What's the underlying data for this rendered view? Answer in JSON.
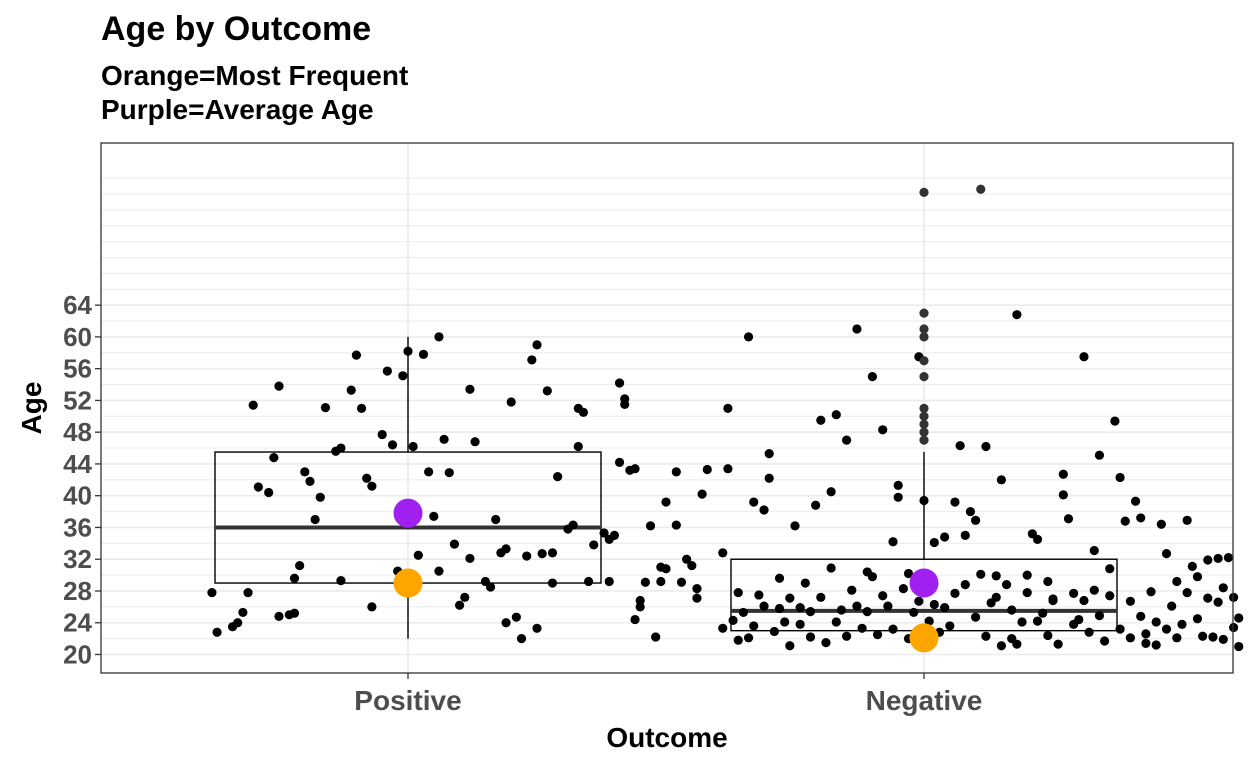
{
  "chart_data": {
    "type": "boxplot",
    "title": "Age by Outcome",
    "subtitle_lines": [
      "Orange=Most Frequent",
      "Purple=Average Age"
    ],
    "xlabel": "Outcome",
    "ylabel": "Age",
    "ylim": [
      18.5,
      80
    ],
    "yticks": [
      20,
      24,
      28,
      32,
      36,
      40,
      44,
      48,
      52,
      56,
      60,
      64
    ],
    "grid": true,
    "categories": [
      "Positive",
      "Negative"
    ],
    "colors": {
      "mode": "#ffa500",
      "mean": "#a020f0",
      "points": "#000000",
      "box": "#000000"
    },
    "boxes": [
      {
        "category": "Positive",
        "whisker_low": 22,
        "q1": 29,
        "median": 36,
        "q3": 45.5,
        "whisker_high": 60,
        "mean": 37.8,
        "mode": 29
      },
      {
        "category": "Negative",
        "whisker_low": 21,
        "q1": 23,
        "median": 25.5,
        "q3": 32,
        "whisker_high": 45.5,
        "mean": 29,
        "mode": 22.1
      }
    ],
    "points": [
      [
        [
          0.62,
          27.8
        ],
        [
          0.63,
          22.8
        ],
        [
          0.66,
          23.5
        ],
        [
          0.67,
          24
        ],
        [
          0.68,
          25.3
        ],
        [
          0.69,
          27.8
        ],
        [
          0.7,
          51.4
        ],
        [
          0.71,
          41.1
        ],
        [
          0.73,
          40.4
        ],
        [
          0.74,
          44.8
        ],
        [
          0.75,
          53.8
        ],
        [
          0.75,
          24.8
        ],
        [
          0.77,
          25
        ],
        [
          0.78,
          25.2
        ],
        [
          0.78,
          29.6
        ],
        [
          0.79,
          31.2
        ],
        [
          0.8,
          43
        ],
        [
          0.81,
          41.8
        ],
        [
          0.82,
          37
        ],
        [
          0.83,
          39.8
        ],
        [
          0.84,
          51.1
        ],
        [
          0.86,
          45.6
        ],
        [
          0.87,
          46
        ],
        [
          0.87,
          29.3
        ],
        [
          0.89,
          53.3
        ],
        [
          0.9,
          57.7
        ],
        [
          0.91,
          51
        ],
        [
          0.92,
          42.2
        ],
        [
          0.93,
          41.2
        ],
        [
          0.93,
          26
        ],
        [
          0.95,
          47.7
        ],
        [
          0.96,
          55.7
        ],
        [
          0.97,
          46.4
        ],
        [
          0.98,
          30.5
        ],
        [
          0.99,
          55.1
        ],
        [
          1,
          58.2
        ],
        [
          1.01,
          46.2
        ],
        [
          1.02,
          32.5
        ],
        [
          1.03,
          57.8
        ],
        [
          1.04,
          43
        ],
        [
          1.05,
          37.4
        ],
        [
          1.06,
          30.5
        ],
        [
          1.06,
          60
        ],
        [
          1.07,
          47.1
        ],
        [
          1.08,
          42.9
        ],
        [
          1.09,
          33.9
        ],
        [
          1.1,
          26.2
        ],
        [
          1.11,
          27.2
        ],
        [
          1.12,
          53.4
        ],
        [
          1.12,
          32.1
        ],
        [
          1.13,
          46.8
        ],
        [
          1.15,
          29.2
        ],
        [
          1.16,
          28.5
        ],
        [
          1.17,
          37
        ],
        [
          1.18,
          32.8
        ],
        [
          1.19,
          24
        ],
        [
          1.19,
          33.3
        ],
        [
          1.2,
          51.8
        ],
        [
          1.21,
          24.7
        ],
        [
          1.22,
          22
        ],
        [
          1.23,
          32.4
        ],
        [
          1.24,
          57.1
        ],
        [
          1.25,
          59
        ],
        [
          1.25,
          23.3
        ],
        [
          1.26,
          32.7
        ],
        [
          1.27,
          53.2
        ],
        [
          1.28,
          29
        ],
        [
          1.28,
          32.8
        ],
        [
          1.29,
          42.4
        ],
        [
          1.31,
          35.8
        ],
        [
          1.32,
          36.3
        ],
        [
          1.33,
          46.2
        ],
        [
          1.33,
          51
        ],
        [
          1.34,
          50.5
        ],
        [
          1.35,
          29.2
        ],
        [
          1.36,
          33.8
        ],
        [
          1.38,
          35.3
        ],
        [
          1.39,
          34.5
        ],
        [
          1.39,
          29.2
        ],
        [
          1.4,
          35
        ],
        [
          1.41,
          44.2
        ],
        [
          1.41,
          54.2
        ],
        [
          1.42,
          52.2
        ],
        [
          1.42,
          51.5
        ],
        [
          1.43,
          43.2
        ],
        [
          1.44,
          43.4
        ],
        [
          1.44,
          24.4
        ],
        [
          1.45,
          26.8
        ],
        [
          1.45,
          26
        ],
        [
          1.46,
          29.1
        ],
        [
          1.47,
          36.2
        ],
        [
          1.48,
          22.2
        ],
        [
          1.49,
          29.2
        ],
        [
          1.49,
          31
        ],
        [
          1.5,
          30.8
        ],
        [
          1.5,
          39.2
        ],
        [
          1.52,
          43
        ],
        [
          1.52,
          36.3
        ],
        [
          1.53,
          29.1
        ],
        [
          1.54,
          32
        ],
        [
          1.55,
          31.2
        ],
        [
          1.56,
          28.3
        ],
        [
          1.56,
          27.1
        ],
        [
          1.57,
          40.2
        ],
        [
          1.58,
          43.3
        ]
      ],
      [
        [
          1.61,
          32.8
        ],
        [
          1.61,
          23.3
        ],
        [
          1.62,
          43.4
        ],
        [
          1.62,
          51
        ],
        [
          1.63,
          24.3
        ],
        [
          1.64,
          21.8
        ],
        [
          1.64,
          27.8
        ],
        [
          1.65,
          25.3
        ],
        [
          1.66,
          22.1
        ],
        [
          1.66,
          60
        ],
        [
          1.67,
          23.6
        ],
        [
          1.67,
          39.2
        ],
        [
          1.68,
          27.5
        ],
        [
          1.69,
          38.2
        ],
        [
          1.69,
          26.1
        ],
        [
          1.7,
          42.2
        ],
        [
          1.7,
          45.3
        ],
        [
          1.71,
          22.9
        ],
        [
          1.72,
          25.8
        ],
        [
          1.72,
          29.6
        ],
        [
          1.73,
          24.1
        ],
        [
          1.74,
          27.1
        ],
        [
          1.74,
          21.1
        ],
        [
          1.75,
          36.2
        ],
        [
          1.76,
          25.9
        ],
        [
          1.76,
          23.8
        ],
        [
          1.77,
          29
        ],
        [
          1.78,
          25.4
        ],
        [
          1.78,
          22.2
        ],
        [
          1.79,
          38.8
        ],
        [
          1.8,
          49.5
        ],
        [
          1.8,
          27.2
        ],
        [
          1.81,
          21.5
        ],
        [
          1.82,
          40.5
        ],
        [
          1.82,
          30.9
        ],
        [
          1.83,
          24.1
        ],
        [
          1.83,
          50.2
        ],
        [
          1.84,
          25.6
        ],
        [
          1.85,
          22.3
        ],
        [
          1.85,
          47
        ],
        [
          1.86,
          28.1
        ],
        [
          1.87,
          61
        ],
        [
          1.87,
          26.1
        ],
        [
          1.88,
          23.3
        ],
        [
          1.89,
          30.4
        ],
        [
          1.89,
          25.4
        ],
        [
          1.9,
          55
        ],
        [
          1.9,
          29.8
        ],
        [
          1.91,
          22.5
        ],
        [
          1.92,
          27.4
        ],
        [
          1.92,
          48.3
        ],
        [
          1.93,
          26.1
        ],
        [
          1.94,
          23.2
        ],
        [
          1.94,
          34.2
        ],
        [
          1.95,
          41.3
        ],
        [
          1.95,
          39.8
        ],
        [
          1.96,
          28.3
        ],
        [
          1.97,
          22
        ],
        [
          1.97,
          30.2
        ],
        [
          1.98,
          25.3
        ],
        [
          1.99,
          26.7
        ],
        [
          1.99,
          57.5
        ],
        [
          2,
          29.8
        ],
        [
          2,
          39.4
        ],
        [
          2.01,
          24.2
        ],
        [
          2.02,
          34.1
        ],
        [
          2.02,
          26.3
        ],
        [
          2.03,
          22.8
        ],
        [
          2.04,
          25.9
        ],
        [
          2.04,
          34.8
        ],
        [
          2.05,
          23.6
        ],
        [
          2.06,
          27.7
        ],
        [
          2.06,
          39.2
        ],
        [
          2.07,
          46.3
        ],
        [
          2.08,
          28.8
        ],
        [
          2.08,
          35
        ],
        [
          2.09,
          38
        ],
        [
          2.1,
          24.7
        ],
        [
          2.1,
          36.9
        ],
        [
          2.11,
          30.1
        ],
        [
          2.12,
          22.3
        ],
        [
          2.12,
          46.2
        ],
        [
          2.13,
          26.5
        ],
        [
          2.14,
          27.2
        ],
        [
          2.14,
          29.9
        ],
        [
          2.15,
          21.1
        ],
        [
          2.15,
          42
        ],
        [
          2.16,
          28.8
        ],
        [
          2.17,
          22
        ],
        [
          2.17,
          25.6
        ],
        [
          2.18,
          62.8
        ],
        [
          2.18,
          21.3
        ],
        [
          2.19,
          24.1
        ],
        [
          2.2,
          27.8
        ],
        [
          2.2,
          30
        ],
        [
          2.21,
          35.2
        ],
        [
          2.22,
          24.2
        ],
        [
          2.22,
          34.5
        ],
        [
          2.23,
          25.2
        ],
        [
          2.24,
          22.4
        ],
        [
          2.24,
          29.2
        ],
        [
          2.25,
          26.8
        ],
        [
          2.25,
          27
        ],
        [
          2.26,
          21.3
        ],
        [
          2.27,
          40.1
        ],
        [
          2.27,
          42.7
        ],
        [
          2.28,
          37.1
        ],
        [
          2.29,
          23.8
        ],
        [
          2.29,
          27.7
        ],
        [
          2.3,
          24.4
        ],
        [
          2.31,
          57.5
        ],
        [
          2.31,
          26.8
        ],
        [
          2.32,
          22.8
        ],
        [
          2.33,
          33.1
        ],
        [
          2.33,
          28.1
        ],
        [
          2.34,
          45.1
        ],
        [
          2.34,
          24.9
        ],
        [
          2.35,
          21.7
        ],
        [
          2.36,
          30.8
        ],
        [
          2.36,
          27.4
        ],
        [
          2.37,
          49.4
        ],
        [
          2.38,
          42.3
        ],
        [
          2.38,
          23.2
        ],
        [
          2.39,
          36.8
        ],
        [
          2.4,
          26.7
        ],
        [
          2.4,
          22.1
        ],
        [
          2.41,
          39.3
        ],
        [
          2.42,
          24.8
        ],
        [
          2.42,
          37.2
        ],
        [
          2.43,
          21.4
        ],
        [
          2.43,
          22.6
        ],
        [
          2.44,
          27.9
        ],
        [
          2.45,
          24.1
        ],
        [
          2.45,
          21.2
        ],
        [
          2.46,
          36.4
        ],
        [
          2.47,
          32.7
        ],
        [
          2.47,
          23.2
        ],
        [
          2.48,
          26.1
        ],
        [
          2.49,
          22.1
        ],
        [
          2.49,
          29.2
        ],
        [
          2.5,
          23.8
        ],
        [
          2.51,
          36.9
        ],
        [
          2.51,
          27.8
        ],
        [
          2.52,
          31.1
        ],
        [
          2.53,
          24.5
        ],
        [
          2.53,
          29.8
        ],
        [
          2.54,
          22.3
        ],
        [
          2.55,
          31.9
        ],
        [
          2.55,
          27.1
        ],
        [
          2.56,
          22.2
        ],
        [
          2.57,
          32.1
        ],
        [
          2.57,
          26.6
        ],
        [
          2.58,
          28.4
        ],
        [
          2.58,
          21.9
        ],
        [
          2.59,
          32.2
        ],
        [
          2.6,
          27.2
        ],
        [
          2.6,
          23.4
        ],
        [
          2.61,
          21
        ],
        [
          2.61,
          24.6
        ]
      ]
    ],
    "outliers": [
      [],
      [
        [
          2,
          47
        ],
        [
          2,
          48
        ],
        [
          2,
          49
        ],
        [
          2,
          50
        ],
        [
          2,
          51
        ],
        [
          2,
          55
        ],
        [
          2,
          57
        ],
        [
          2,
          60
        ],
        [
          2,
          61
        ],
        [
          2,
          63
        ],
        [
          2,
          78.2
        ],
        [
          2.11,
          78.6
        ]
      ]
    ]
  }
}
